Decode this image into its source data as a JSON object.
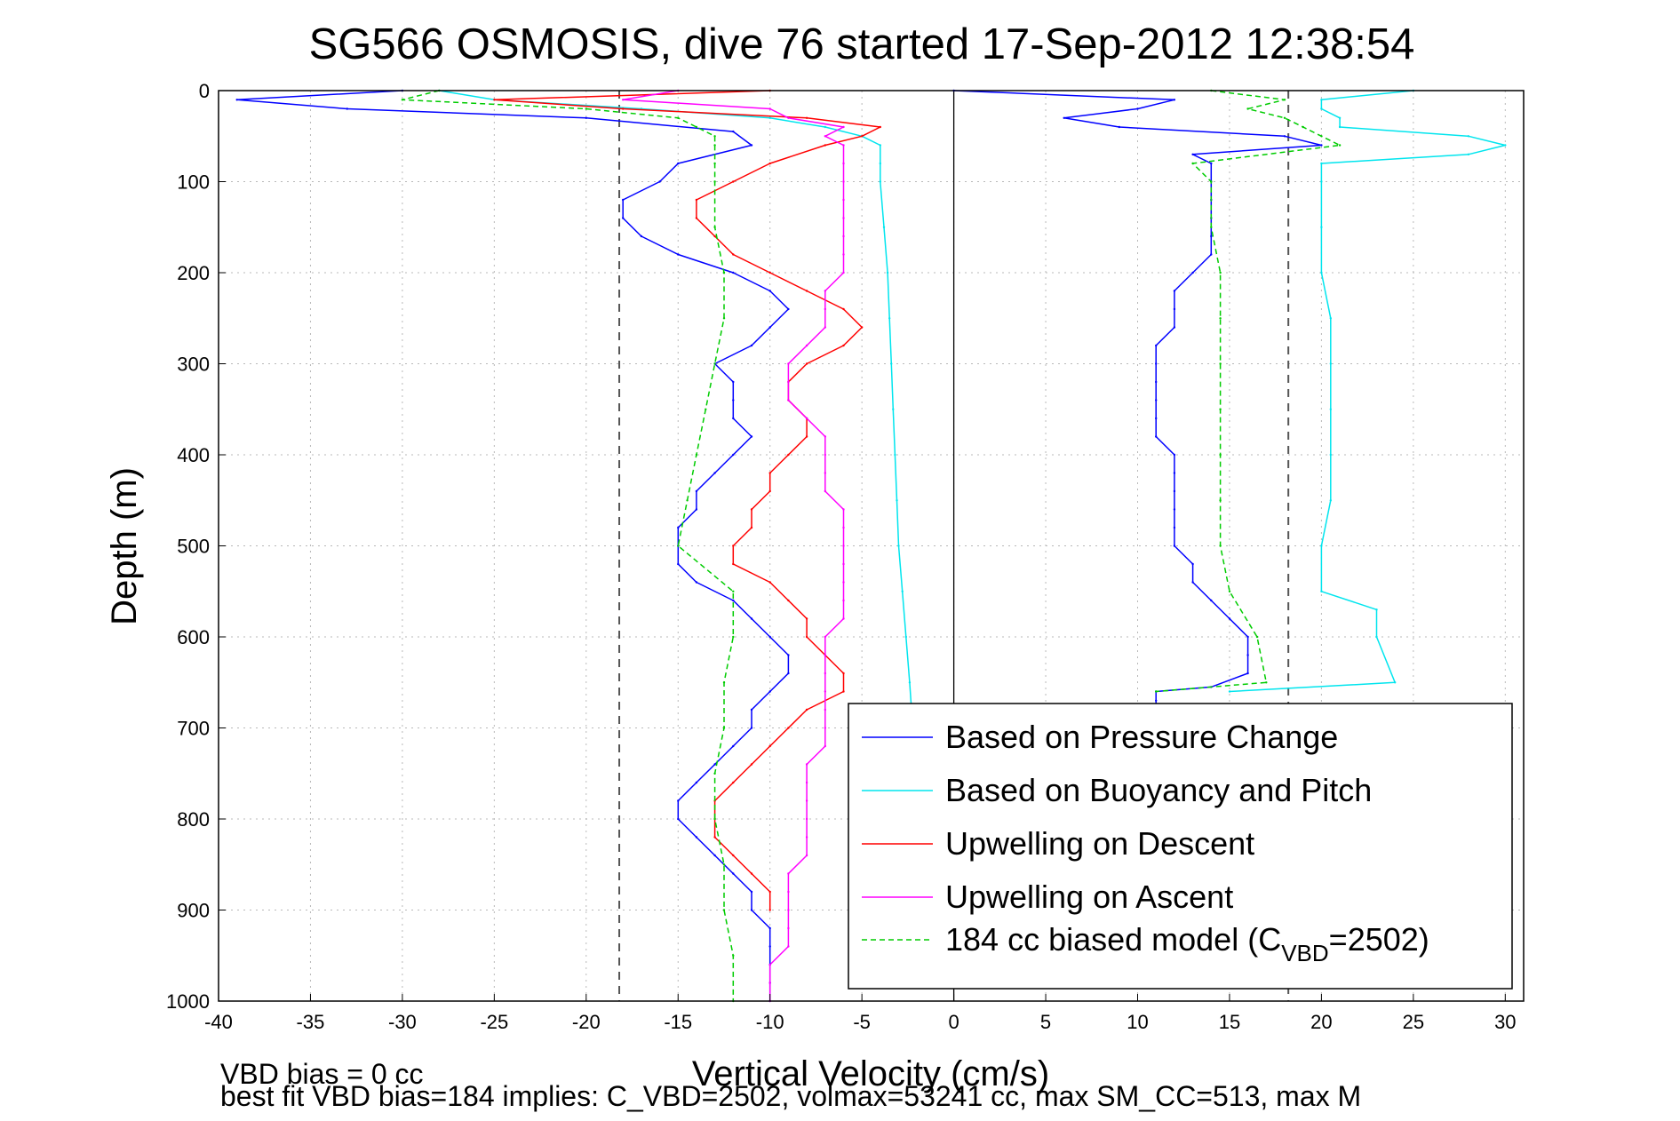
{
  "chart_data": {
    "type": "line",
    "title": "SG566 OSMOSIS, dive 76 started 17-Sep-2012 12:38:54",
    "xlabel": "Vertical Velocity (cm/s)",
    "ylabel": "Depth (m)",
    "xlim": [
      -40,
      31
    ],
    "ylim": [
      0,
      1000
    ],
    "y_reversed": true,
    "xticks": [
      "-40",
      "-35",
      "-30",
      "-25",
      "-20",
      "-15",
      "-10",
      "-5",
      "0",
      "5",
      "10",
      "15",
      "20",
      "25",
      "30"
    ],
    "yticks": [
      "0",
      "100",
      "200",
      "300",
      "400",
      "500",
      "600",
      "700",
      "800",
      "900",
      "1000"
    ],
    "grid": true,
    "legend_position": "lower-right",
    "reference_lines": [
      {
        "x": -18.2,
        "style": "dashed",
        "color": "#555555"
      },
      {
        "x": 0,
        "style": "solid",
        "color": "#000000"
      },
      {
        "x": 18.2,
        "style": "dashed",
        "color": "#555555"
      }
    ],
    "series": [
      {
        "name": "Based on Pressure Change",
        "color": "#0000ff",
        "style": "solid",
        "branches": [
          {
            "depth": [
              0,
              10,
              20,
              30,
              45,
              60,
              80,
              100,
              120,
              140,
              160,
              180,
              200,
              220,
              240,
              260,
              280,
              300,
              320,
              340,
              360,
              380,
              400,
              420,
              440,
              460,
              480,
              500,
              520,
              540,
              560,
              580,
              600,
              620,
              640,
              660,
              680,
              700,
              720,
              740,
              760,
              780,
              800,
              820,
              840,
              860,
              880,
              900,
              920,
              940,
              960,
              980,
              1000
            ],
            "values": [
              -30,
              -39,
              -33,
              -20,
              -12,
              -11,
              -15,
              -16,
              -18,
              -18,
              -17,
              -15,
              -12,
              -10,
              -9,
              -10,
              -11,
              -13,
              -12,
              -12,
              -12,
              -11,
              -12,
              -13,
              -14,
              -14,
              -15,
              -15,
              -15,
              -14,
              -12,
              -11,
              -10,
              -9,
              -9,
              -10,
              -11,
              -11,
              -12,
              -13,
              -14,
              -15,
              -15,
              -14,
              -13,
              -12,
              -11,
              -11,
              -10,
              -10,
              -10,
              -10,
              -10
            ]
          },
          {
            "depth": [
              0,
              10,
              20,
              30,
              40,
              50,
              60,
              70,
              80,
              100,
              120,
              140,
              160,
              180,
              200,
              220,
              240,
              260,
              280,
              300,
              320,
              340,
              360,
              380,
              400,
              420,
              440,
              460,
              480,
              500,
              520,
              540,
              560,
              580,
              600,
              620,
              640,
              655,
              660,
              670,
              680
            ],
            "values": [
              0,
              12,
              10,
              6,
              9,
              18,
              20,
              13,
              14,
              14,
              14,
              14,
              14,
              14,
              13,
              12,
              12,
              12,
              11,
              11,
              11,
              11,
              11,
              11,
              12,
              12,
              12,
              12,
              12,
              12,
              13,
              13,
              14,
              15,
              16,
              16,
              16,
              14,
              11,
              11,
              11
            ]
          }
        ]
      },
      {
        "name": "Based on Buoyancy and Pitch",
        "color": "#00e5ee",
        "style": "solid",
        "branches": [
          {
            "depth": [
              0,
              10,
              20,
              30,
              40,
              50,
              60,
              80,
              100,
              150,
              200,
              250,
              300,
              350,
              400,
              450,
              500,
              550,
              600,
              650,
              680
            ],
            "values": [
              -28,
              -25,
              -17,
              -10,
              -7,
              -5,
              -4,
              -4,
              -4,
              -3.8,
              -3.6,
              -3.5,
              -3.4,
              -3.3,
              -3.2,
              -3.1,
              -3.0,
              -2.8,
              -2.6,
              -2.4,
              -2.3
            ]
          },
          {
            "depth": [
              0,
              10,
              20,
              30,
              40,
              50,
              60,
              70,
              80,
              100,
              150,
              200,
              250,
              300,
              350,
              400,
              450,
              500,
              550,
              570,
              600,
              650,
              660
            ],
            "values": [
              25,
              20,
              20,
              21,
              21,
              28,
              30,
              28,
              20,
              20,
              20,
              20,
              20.5,
              20.5,
              20.5,
              20.5,
              20.5,
              20,
              20,
              23,
              23,
              24,
              15
            ]
          }
        ]
      },
      {
        "name": "Upwelling on Descent",
        "color": "#ff0000",
        "style": "solid",
        "branches": [
          {
            "depth": [
              0,
              10,
              20,
              30,
              40,
              50,
              60,
              80,
              100,
              120,
              140,
              160,
              180,
              200,
              220,
              240,
              260,
              280,
              300,
              320,
              340,
              360,
              380,
              400,
              420,
              440,
              460,
              480,
              500,
              520,
              540,
              560,
              580,
              600,
              620,
              640,
              660,
              680,
              700,
              720,
              740,
              760,
              780,
              800,
              820,
              840,
              860,
              880,
              900
            ],
            "values": [
              -10,
              -25,
              -18,
              -8,
              -4,
              -5,
              -7,
              -10,
              -12,
              -14,
              -14,
              -13,
              -12,
              -10,
              -8,
              -6,
              -5,
              -6,
              -8,
              -9,
              -9,
              -8,
              -8,
              -9,
              -10,
              -10,
              -11,
              -11,
              -12,
              -12,
              -10,
              -9,
              -8,
              -8,
              -7,
              -6,
              -6,
              -8,
              -9,
              -10,
              -11,
              -12,
              -13,
              -13,
              -13,
              -12,
              -11,
              -10,
              -10
            ]
          }
        ]
      },
      {
        "name": "Upwelling on Ascent",
        "color": "#ff00ff",
        "style": "solid",
        "branches": [
          {
            "depth": [
              0,
              10,
              20,
              30,
              40,
              50,
              60,
              80,
              100,
              120,
              140,
              160,
              180,
              200,
              220,
              240,
              260,
              280,
              300,
              320,
              340,
              360,
              380,
              400,
              420,
              440,
              460,
              480,
              500,
              520,
              540,
              560,
              580,
              600,
              620,
              640,
              660,
              680,
              700,
              720,
              740,
              760,
              780,
              800,
              820,
              840,
              860,
              880,
              900,
              920,
              940,
              960,
              980,
              1000
            ],
            "values": [
              -15,
              -18,
              -10,
              -9,
              -6,
              -7,
              -6,
              -6,
              -6,
              -6,
              -6,
              -6,
              -6,
              -6,
              -7,
              -7,
              -7,
              -8,
              -9,
              -9,
              -9,
              -8,
              -7,
              -7,
              -7,
              -7,
              -6,
              -6,
              -6,
              -6,
              -6,
              -6,
              -6,
              -7,
              -7,
              -7,
              -7,
              -7,
              -7,
              -7,
              -8,
              -8,
              -8,
              -8,
              -8,
              -8,
              -9,
              -9,
              -9,
              -9,
              -9,
              -10,
              -10,
              -10
            ]
          }
        ]
      },
      {
        "name": "184 cc biased model (C_VBD=2502)",
        "color": "#00cc00",
        "style": "dashed",
        "branches": [
          {
            "depth": [
              0,
              10,
              20,
              30,
              40,
              50,
              60,
              80,
              100,
              150,
              200,
              250,
              300,
              350,
              400,
              450,
              500,
              550,
              600,
              650,
              700,
              750,
              800,
              850,
              900,
              950,
              1000
            ],
            "values": [
              -28,
              -30,
              -20,
              -15,
              -14,
              -13,
              -13,
              -13,
              -13,
              -13,
              -12.5,
              -12.5,
              -13,
              -13.5,
              -14,
              -14.5,
              -15,
              -12,
              -12,
              -12.5,
              -12.5,
              -13,
              -13,
              -12.5,
              -12.5,
              -12,
              -12
            ]
          },
          {
            "depth": [
              0,
              10,
              20,
              30,
              40,
              50,
              60,
              80,
              100,
              150,
              200,
              250,
              300,
              350,
              400,
              450,
              500,
              550,
              600,
              650,
              660
            ],
            "values": [
              14,
              18,
              16,
              18,
              19,
              20,
              21,
              13,
              14,
              14,
              14.5,
              14.5,
              14.5,
              14.5,
              14.5,
              14.5,
              14.5,
              15,
              16.5,
              17,
              11
            ]
          }
        ]
      }
    ],
    "legend": [
      {
        "label": "Based on Pressure Change",
        "color": "#0000ff",
        "dashed": false
      },
      {
        "label": "Based on Buoyancy and Pitch",
        "color": "#00e5ee",
        "dashed": false
      },
      {
        "label": "Upwelling on Descent",
        "color": "#ff0000",
        "dashed": false
      },
      {
        "label": "Upwelling on Ascent",
        "color": "#ff00ff",
        "dashed": false
      },
      {
        "label_pre": "184 cc biased model (C",
        "label_sub": "VBD",
        "label_post": "=2502)",
        "color": "#00cc00",
        "dashed": true
      }
    ],
    "annotations": [
      "VBD bias = 0 cc",
      "best fit VBD bias=184 implies: C_VBD=2502, volmax=53241 cc, max SM_CC=513, max M"
    ]
  }
}
